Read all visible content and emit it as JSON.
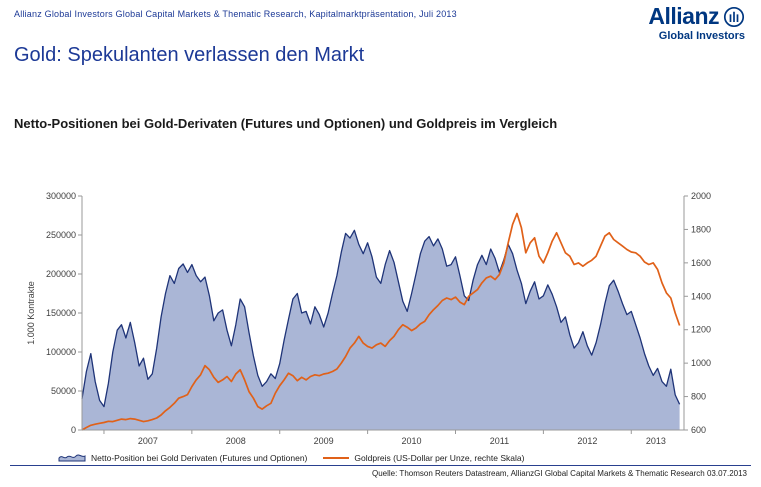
{
  "header": {
    "meta": "Allianz Global Investors Global Capital Markets & Thematic Research, Kapitalmarktpräsentation, Juli 2013",
    "logo": {
      "brand": "Allianz",
      "sub": "Global Investors",
      "color": "#003781"
    }
  },
  "title": "Gold: Spekulanten verlassen den Markt",
  "subtitle": "Netto-Positionen bei Gold-Derivaten (Futures und Optionen) und Goldpreis im Vergleich",
  "footer": {
    "source": "Quelle: Thomson Reuters Datastream, AllianzGI Global Capital Markets & Thematic Research 03.07.2013"
  },
  "chart_data": {
    "type": "area+line",
    "legend_position": "bottom",
    "grid": false,
    "layout": {
      "axis_color": "#999999",
      "text_color": "#404040"
    },
    "x_axis": {
      "min": 2006.75,
      "max": 2013.6,
      "ticks": [
        2007,
        2008,
        2009,
        2010,
        2011,
        2012,
        2013
      ],
      "labels": [
        {
          "text": "2007",
          "pos": 2007.5
        },
        {
          "text": "2008",
          "pos": 2008.5
        },
        {
          "text": "2009",
          "pos": 2009.5
        },
        {
          "text": "2010",
          "pos": 2010.5
        },
        {
          "text": "2011",
          "pos": 2011.5
        },
        {
          "text": "2012",
          "pos": 2012.5
        },
        {
          "text": "2013",
          "pos": 2013.28
        }
      ]
    },
    "left_axis": {
      "label": "1.000 Kontrakte",
      "min": 0,
      "max": 300000,
      "ticks": [
        0,
        50000,
        100000,
        150000,
        200000,
        250000,
        300000
      ]
    },
    "right_axis": {
      "min": 600,
      "max": 2000,
      "ticks": [
        600,
        800,
        1000,
        1200,
        1400,
        1600,
        1800,
        2000
      ]
    },
    "series": [
      {
        "name": "Netto-Position bei Gold Derivaten (Futures und Optionen)",
        "type": "area",
        "axis": "left",
        "color": "#1f3478",
        "fill": "#aab6d6",
        "x_start": 2006.75,
        "x_step": 0.05,
        "values": [
          40000,
          75000,
          98000,
          62000,
          38000,
          30000,
          60000,
          100000,
          128000,
          135000,
          118000,
          138000,
          112000,
          82000,
          92000,
          65000,
          72000,
          105000,
          145000,
          175000,
          198000,
          188000,
          207000,
          213000,
          202000,
          212000,
          198000,
          190000,
          196000,
          172000,
          140000,
          150000,
          154000,
          128000,
          108000,
          135000,
          168000,
          158000,
          125000,
          95000,
          70000,
          56000,
          62000,
          72000,
          66000,
          85000,
          115000,
          142000,
          168000,
          175000,
          150000,
          152000,
          136000,
          158000,
          148000,
          132000,
          150000,
          175000,
          198000,
          228000,
          252000,
          246000,
          256000,
          238000,
          226000,
          240000,
          222000,
          196000,
          188000,
          212000,
          230000,
          215000,
          190000,
          165000,
          152000,
          175000,
          200000,
          226000,
          242000,
          248000,
          236000,
          245000,
          232000,
          210000,
          212000,
          222000,
          198000,
          172000,
          166000,
          192000,
          212000,
          224000,
          212000,
          232000,
          220000,
          202000,
          218000,
          238000,
          226000,
          205000,
          188000,
          162000,
          178000,
          190000,
          168000,
          172000,
          186000,
          174000,
          158000,
          138000,
          145000,
          122000,
          105000,
          112000,
          126000,
          108000,
          96000,
          112000,
          135000,
          162000,
          185000,
          192000,
          178000,
          162000,
          148000,
          152000,
          135000,
          118000,
          98000,
          82000,
          70000,
          79000,
          62000,
          56000,
          78000,
          45000,
          33000
        ]
      },
      {
        "name": "Goldpreis (US-Dollar per Unze, rechte Skala)",
        "type": "line",
        "axis": "right",
        "color": "#e06119",
        "x_start": 2006.75,
        "x_step": 0.05,
        "values": [
          600,
          615,
          628,
          635,
          640,
          645,
          652,
          650,
          658,
          665,
          662,
          668,
          665,
          658,
          650,
          655,
          662,
          672,
          690,
          715,
          735,
          760,
          790,
          800,
          812,
          860,
          900,
          930,
          985,
          960,
          915,
          885,
          900,
          920,
          890,
          935,
          960,
          900,
          830,
          790,
          740,
          725,
          745,
          760,
          820,
          865,
          900,
          940,
          925,
          895,
          915,
          900,
          920,
          930,
          925,
          935,
          940,
          950,
          965,
          1000,
          1040,
          1090,
          1120,
          1160,
          1120,
          1100,
          1090,
          1110,
          1120,
          1100,
          1135,
          1160,
          1200,
          1230,
          1215,
          1195,
          1210,
          1235,
          1250,
          1290,
          1320,
          1345,
          1375,
          1390,
          1380,
          1395,
          1365,
          1350,
          1400,
          1420,
          1440,
          1480,
          1510,
          1520,
          1500,
          1530,
          1600,
          1720,
          1830,
          1895,
          1810,
          1660,
          1720,
          1750,
          1640,
          1600,
          1660,
          1730,
          1780,
          1720,
          1660,
          1640,
          1590,
          1600,
          1580,
          1600,
          1615,
          1640,
          1700,
          1760,
          1780,
          1740,
          1720,
          1700,
          1680,
          1665,
          1660,
          1640,
          1605,
          1590,
          1600,
          1560,
          1480,
          1420,
          1390,
          1300,
          1225
        ]
      }
    ]
  }
}
